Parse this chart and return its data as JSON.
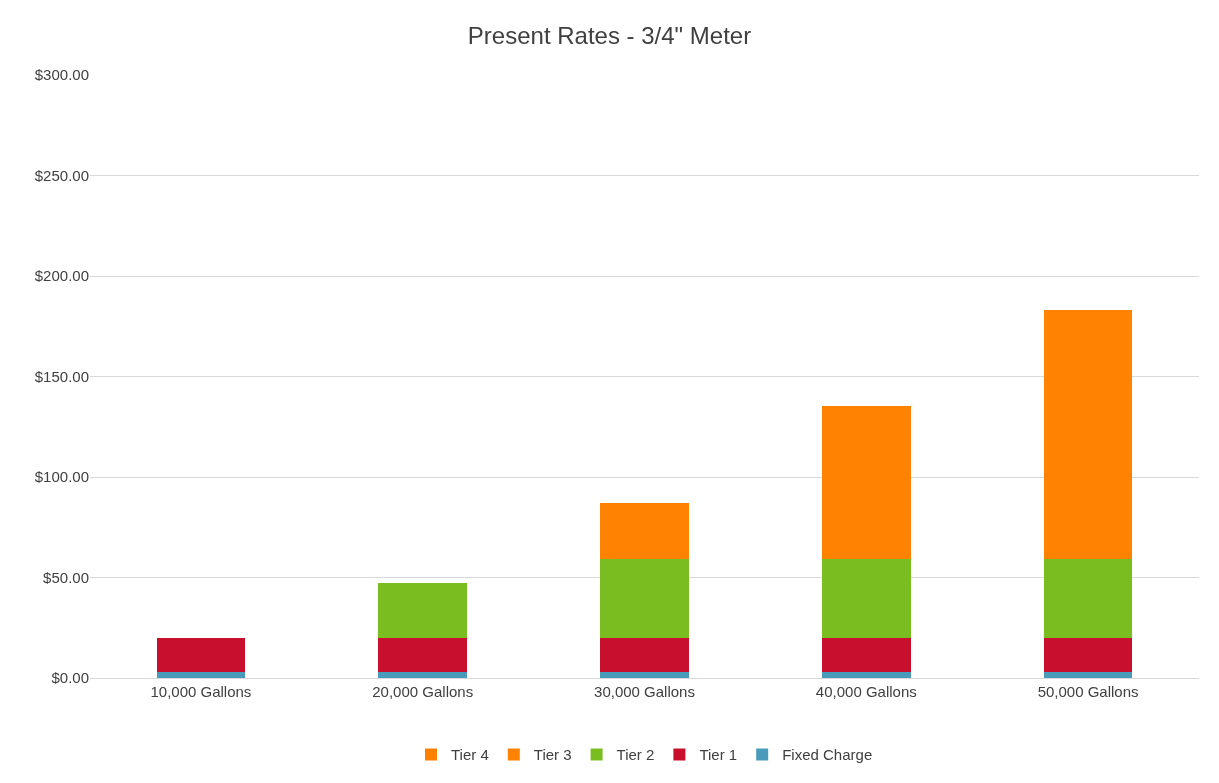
{
  "chart_data": {
    "type": "bar",
    "title": "Present Rates - 3/4\" Meter",
    "stacked": true,
    "legend": "bottom",
    "grid": "y",
    "categories": [
      "10,000 Gallons",
      "20,000 Gallons",
      "30,000 Gallons",
      "40,000 Gallons",
      "50,000 Gallons"
    ],
    "ylim": [
      0,
      300
    ],
    "yticks": [
      {
        "value": 0,
        "label": "$0.00"
      },
      {
        "value": 50,
        "label": "$50.00"
      },
      {
        "value": 100,
        "label": "$100.00"
      },
      {
        "value": 150,
        "label": "$150.00"
      },
      {
        "value": 200,
        "label": "$200.00"
      },
      {
        "value": 250,
        "label": "$250.00"
      },
      {
        "value": 300,
        "label": "$300.00"
      }
    ],
    "series": [
      {
        "name": "Fixed Charge",
        "color": "#4a9bbb",
        "values": [
          3,
          3,
          3,
          3,
          3
        ]
      },
      {
        "name": "Tier 1",
        "color": "#c8102e",
        "values": [
          17,
          17,
          17,
          17,
          17
        ]
      },
      {
        "name": "Tier 2",
        "color": "#7abd21",
        "values": [
          0,
          27.5,
          39,
          39,
          39
        ]
      },
      {
        "name": "Tier 3",
        "color": "#ff8200",
        "values": [
          0,
          0,
          28.3,
          76.5,
          123.9
        ]
      },
      {
        "name": "Tier 4",
        "color": "#ff8000",
        "values": [
          0,
          0,
          0,
          0,
          0
        ]
      }
    ]
  }
}
